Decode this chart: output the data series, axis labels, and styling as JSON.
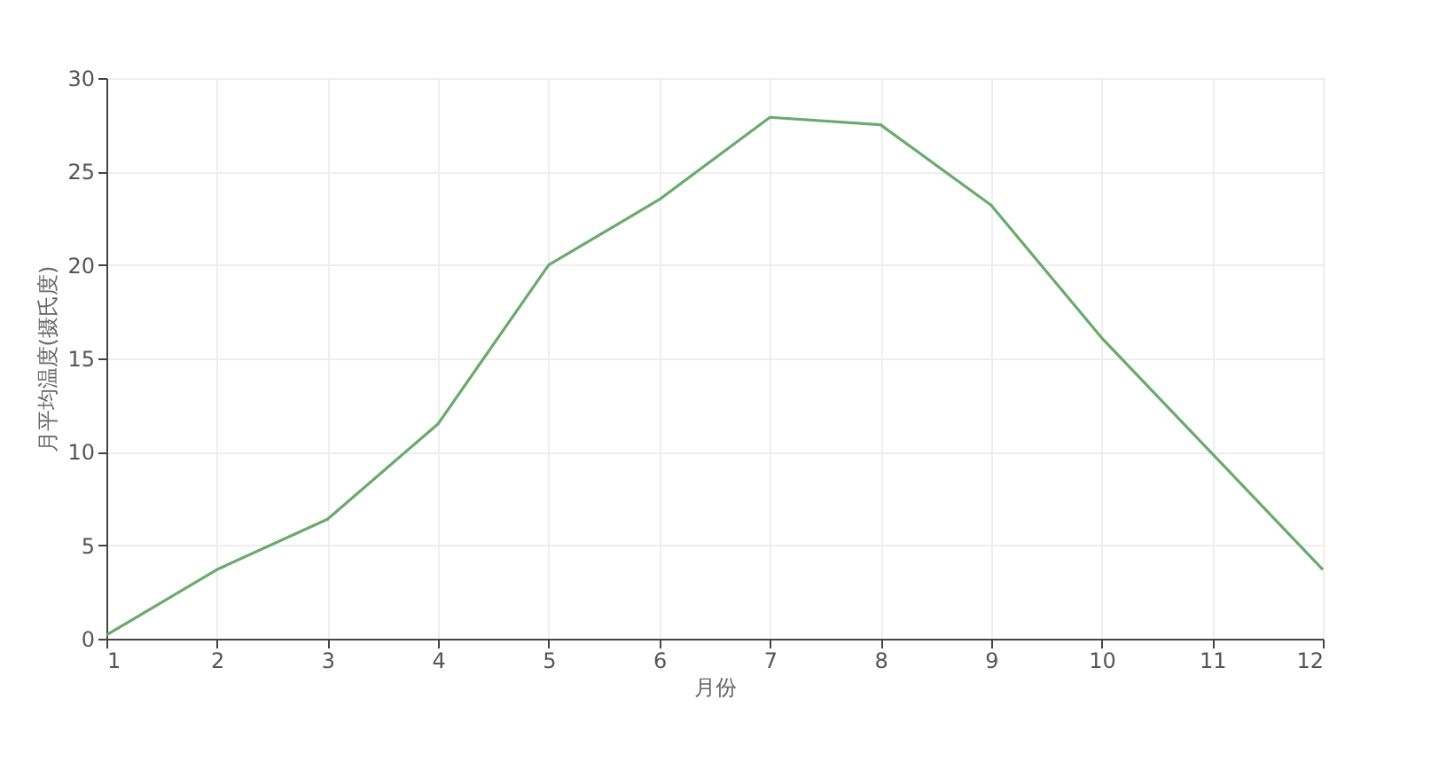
{
  "chart_data": {
    "type": "line",
    "xlabel": "月份",
    "ylabel": "月平均温度(摄氏度)",
    "x": [
      1,
      2,
      3,
      4,
      5,
      6,
      7,
      8,
      9,
      10,
      11,
      12
    ],
    "series": [
      {
        "color": "#6aaa6e",
        "values": [
          0.2,
          3.7,
          6.4,
          11.5,
          20.0,
          23.5,
          27.9,
          27.5,
          23.2,
          16.1,
          9.9,
          3.7
        ]
      }
    ],
    "xlim": [
      1,
      12
    ],
    "xticks": [
      1,
      2,
      3,
      4,
      5,
      6,
      7,
      8,
      9,
      10,
      11,
      12
    ],
    "ylim": [
      0,
      30
    ],
    "yticks": [
      0,
      5,
      10,
      15,
      20,
      25,
      30
    ],
    "grid": true,
    "marker": "none",
    "line_style": "solid"
  }
}
